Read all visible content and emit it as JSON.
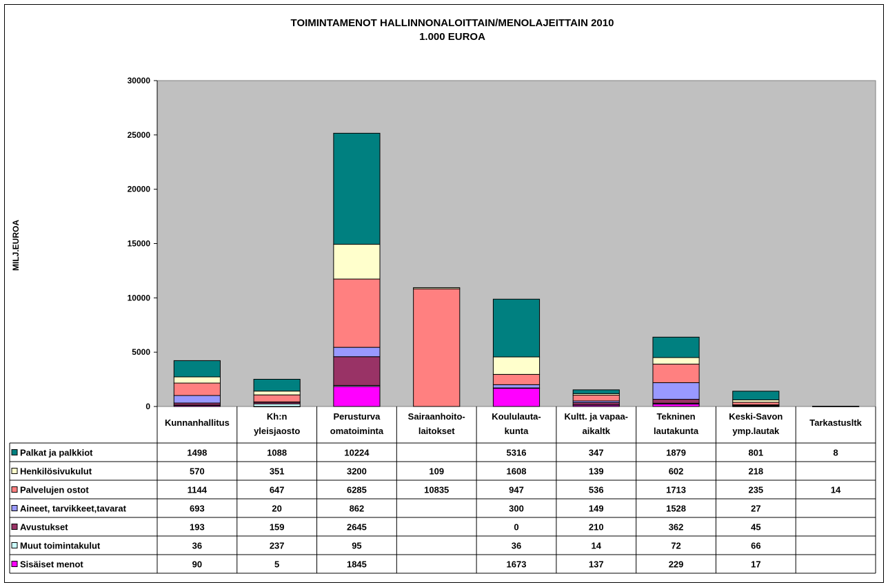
{
  "chart_data": {
    "type": "bar",
    "stacked": true,
    "title": "TOIMINTAMENOT HALLINNONALOITTAIN/MENOLAJEITTAIN 2010",
    "subtitle": "1.000 EUROA",
    "ylabel": "MILJ.EUROA",
    "ylim": [
      0,
      30000
    ],
    "yticks": [
      "0",
      "5000",
      "10000",
      "15000",
      "20000",
      "25000",
      "30000"
    ],
    "grid": false,
    "plot_background": "#c0c0c0",
    "categories": [
      [
        "Kunnanhallitus"
      ],
      [
        "Kh:n",
        "yleisjaosto"
      ],
      [
        "Perusturva",
        "omatoiminta"
      ],
      [
        "Sairaanhoito-",
        "laitokset"
      ],
      [
        "Koululauta-",
        "kunta"
      ],
      [
        "Kultt. ja vapaa-",
        "aikaltk"
      ],
      [
        "Tekninen",
        "lautakunta"
      ],
      [
        "Keski-Savon",
        "ymp.lautak"
      ],
      [
        "Tarkastusltk"
      ]
    ],
    "series": [
      {
        "name": "Palkat ja palkkiot",
        "color": "#008080",
        "values": [
          1498,
          1088,
          10224,
          null,
          5316,
          347,
          1879,
          801,
          8
        ]
      },
      {
        "name": "Henkilösivukulut",
        "color": "#ffffcc",
        "values": [
          570,
          351,
          3200,
          109,
          1608,
          139,
          602,
          218,
          null
        ]
      },
      {
        "name": "Palvelujen ostot",
        "color": "#ff8080",
        "values": [
          1144,
          647,
          6285,
          10835,
          947,
          536,
          1713,
          235,
          14
        ]
      },
      {
        "name": "Aineet, tarvikkeet,tavarat",
        "color": "#9999ff",
        "values": [
          693,
          20,
          862,
          null,
          300,
          149,
          1528,
          27,
          null
        ]
      },
      {
        "name": "Avustukset",
        "color": "#993366",
        "values": [
          193,
          159,
          2645,
          null,
          0,
          210,
          362,
          45,
          null
        ]
      },
      {
        "name": "Muut toimintakulut",
        "color": "#ccffff",
        "values": [
          36,
          237,
          95,
          null,
          36,
          14,
          72,
          66,
          null
        ]
      },
      {
        "name": "Sisäiset menot",
        "color": "#ff00ff",
        "values": [
          90,
          5,
          1845,
          null,
          1673,
          137,
          229,
          17,
          null
        ]
      }
    ]
  }
}
